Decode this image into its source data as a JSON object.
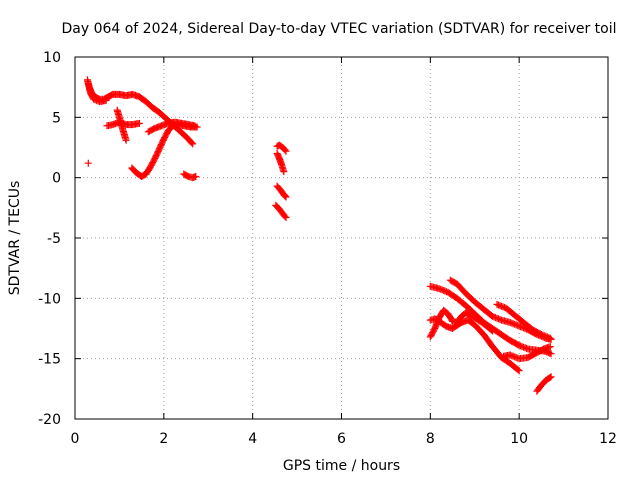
{
  "chart_data": {
    "type": "scatter",
    "title": "Day 064 of 2024, Sidereal Day-to-day VTEC variation (SDTVAR) for receiver toil",
    "xlabel": "GPS time / hours",
    "ylabel": "SDTVAR / TECUs",
    "xlim": [
      0,
      12
    ],
    "ylim": [
      -20,
      10
    ],
    "xticks": [
      0,
      2,
      4,
      6,
      8,
      10,
      12
    ],
    "yticks": [
      -20,
      -15,
      -10,
      -5,
      0,
      5,
      10
    ],
    "grid": true,
    "marker": "+",
    "series": [
      {
        "name": "SDTVAR",
        "color": "#ff0000",
        "tracks": [
          [
            [
              0.28,
              8.1
            ],
            [
              0.32,
              7.5
            ],
            [
              0.38,
              7.0
            ],
            [
              0.45,
              6.7
            ],
            [
              0.55,
              6.5
            ],
            [
              0.65,
              6.5
            ],
            [
              0.75,
              6.7
            ],
            [
              0.85,
              6.9
            ],
            [
              1.0,
              6.9
            ],
            [
              1.15,
              6.8
            ],
            [
              1.3,
              6.9
            ],
            [
              1.45,
              6.7
            ],
            [
              1.6,
              6.3
            ],
            [
              1.75,
              5.8
            ],
            [
              1.9,
              5.4
            ],
            [
              2.05,
              4.9
            ],
            [
              2.2,
              4.4
            ],
            [
              2.35,
              3.9
            ],
            [
              2.5,
              3.4
            ],
            [
              2.65,
              2.8
            ]
          ],
          [
            [
              0.3,
              7.8
            ],
            [
              0.35,
              7.0
            ],
            [
              0.42,
              6.5
            ],
            [
              0.55,
              6.3
            ],
            [
              0.7,
              6.4
            ]
          ],
          [
            [
              0.72,
              4.3
            ],
            [
              0.85,
              4.4
            ],
            [
              1.0,
              4.6
            ],
            [
              1.15,
              4.4
            ],
            [
              1.3,
              4.4
            ],
            [
              1.45,
              4.5
            ]
          ],
          [
            [
              0.95,
              5.6
            ],
            [
              1.0,
              5.0
            ],
            [
              1.05,
              4.3
            ],
            [
              1.1,
              3.7
            ],
            [
              1.15,
              3.1
            ]
          ],
          [
            [
              1.28,
              0.8
            ],
            [
              1.38,
              0.4
            ],
            [
              1.5,
              0.1
            ],
            [
              1.6,
              0.3
            ],
            [
              1.7,
              0.9
            ],
            [
              1.8,
              1.6
            ],
            [
              1.9,
              2.4
            ],
            [
              2.0,
              3.2
            ],
            [
              2.1,
              3.9
            ],
            [
              2.2,
              4.3
            ],
            [
              2.3,
              4.4
            ],
            [
              2.45,
              4.3
            ],
            [
              2.6,
              4.2
            ],
            [
              2.75,
              4.2
            ]
          ],
          [
            [
              1.65,
              3.8
            ],
            [
              1.8,
              4.1
            ],
            [
              1.95,
              4.3
            ],
            [
              2.1,
              4.5
            ],
            [
              2.25,
              4.6
            ],
            [
              2.4,
              4.5
            ],
            [
              2.55,
              4.4
            ],
            [
              2.7,
              4.3
            ]
          ],
          [
            [
              2.45,
              0.3
            ],
            [
              2.55,
              0.1
            ],
            [
              2.65,
              0.0
            ],
            [
              2.72,
              0.1
            ]
          ],
          [
            [
              0.3,
              1.2
            ]
          ],
          [
            [
              4.55,
              2.6
            ],
            [
              4.6,
              2.7
            ],
            [
              4.68,
              2.5
            ],
            [
              4.75,
              2.2
            ]
          ],
          [
            [
              4.55,
              2.0
            ],
            [
              4.6,
              1.6
            ],
            [
              4.65,
              1.1
            ],
            [
              4.7,
              0.5
            ]
          ],
          [
            [
              4.55,
              -0.7
            ],
            [
              4.62,
              -1.0
            ],
            [
              4.7,
              -1.4
            ],
            [
              4.75,
              -1.6
            ]
          ],
          [
            [
              4.52,
              -2.3
            ],
            [
              4.6,
              -2.6
            ],
            [
              4.68,
              -3.0
            ],
            [
              4.75,
              -3.3
            ]
          ],
          [
            [
              8.0,
              -9.0
            ],
            [
              8.2,
              -9.2
            ],
            [
              8.4,
              -9.5
            ],
            [
              8.6,
              -10.0
            ],
            [
              8.8,
              -10.6
            ],
            [
              9.0,
              -11.3
            ],
            [
              9.2,
              -12.0
            ],
            [
              9.4,
              -12.5
            ],
            [
              9.6,
              -13.0
            ],
            [
              9.8,
              -13.5
            ],
            [
              10.0,
              -13.9
            ],
            [
              10.2,
              -14.2
            ],
            [
              10.4,
              -14.3
            ],
            [
              10.6,
              -14.4
            ],
            [
              10.72,
              -14.6
            ]
          ],
          [
            [
              8.45,
              -8.5
            ],
            [
              8.6,
              -8.8
            ],
            [
              8.8,
              -9.6
            ],
            [
              9.0,
              -10.3
            ],
            [
              9.2,
              -10.9
            ],
            [
              9.4,
              -11.5
            ],
            [
              9.6,
              -11.8
            ],
            [
              9.8,
              -12.0
            ],
            [
              10.0,
              -12.3
            ],
            [
              10.2,
              -12.6
            ],
            [
              10.4,
              -13.0
            ],
            [
              10.6,
              -13.3
            ],
            [
              10.72,
              -13.4
            ]
          ],
          [
            [
              8.0,
              -13.2
            ],
            [
              8.1,
              -12.5
            ],
            [
              8.2,
              -11.6
            ],
            [
              8.3,
              -11.0
            ],
            [
              8.4,
              -11.3
            ],
            [
              8.5,
              -11.9
            ],
            [
              8.6,
              -12.0
            ],
            [
              8.7,
              -11.5
            ],
            [
              8.8,
              -11.2
            ],
            [
              9.0,
              -11.6
            ],
            [
              9.2,
              -12.1
            ],
            [
              9.4,
              -12.7
            ]
          ],
          [
            [
              8.0,
              -11.8
            ],
            [
              8.1,
              -11.7
            ],
            [
              8.2,
              -11.9
            ],
            [
              8.35,
              -12.3
            ],
            [
              8.5,
              -12.5
            ],
            [
              8.7,
              -12.0
            ],
            [
              8.85,
              -11.8
            ],
            [
              9.0,
              -12.2
            ],
            [
              9.2,
              -13.0
            ],
            [
              9.4,
              -14.0
            ],
            [
              9.6,
              -14.9
            ],
            [
              9.8,
              -15.4
            ],
            [
              10.0,
              -16.0
            ]
          ],
          [
            [
              9.5,
              -10.5
            ],
            [
              9.7,
              -10.8
            ],
            [
              9.9,
              -11.4
            ],
            [
              10.1,
              -12.0
            ],
            [
              10.3,
              -12.6
            ],
            [
              10.5,
              -13.0
            ],
            [
              10.7,
              -13.3
            ]
          ],
          [
            [
              9.65,
              -14.8
            ],
            [
              9.8,
              -14.7
            ],
            [
              10.0,
              -15.0
            ],
            [
              10.2,
              -14.9
            ],
            [
              10.4,
              -14.5
            ],
            [
              10.55,
              -14.2
            ],
            [
              10.7,
              -14.0
            ]
          ],
          [
            [
              10.4,
              -17.7
            ],
            [
              10.5,
              -17.2
            ],
            [
              10.6,
              -16.8
            ],
            [
              10.72,
              -16.5
            ]
          ]
        ]
      }
    ]
  }
}
